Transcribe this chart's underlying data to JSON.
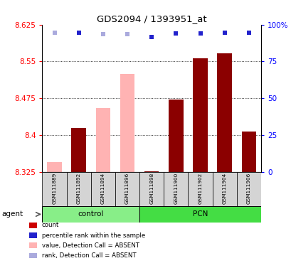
{
  "title": "GDS2094 / 1393951_at",
  "samples": [
    "GSM111889",
    "GSM111892",
    "GSM111894",
    "GSM111896",
    "GSM111898",
    "GSM111900",
    "GSM111902",
    "GSM111904",
    "GSM111906"
  ],
  "groups": [
    "control",
    "control",
    "control",
    "control",
    "PCN",
    "PCN",
    "PCN",
    "PCN",
    "PCN"
  ],
  "bar_values": [
    8.345,
    8.415,
    8.455,
    8.525,
    8.327,
    8.472,
    8.557,
    8.567,
    8.408
  ],
  "bar_colors": [
    "#ffb3b3",
    "#8b0000",
    "#ffb3b3",
    "#ffb3b3",
    "#8b0000",
    "#8b0000",
    "#8b0000",
    "#8b0000",
    "#8b0000"
  ],
  "dot_y": [
    8.608,
    8.608,
    8.605,
    8.605,
    8.6,
    8.607,
    8.607,
    8.608,
    8.608
  ],
  "dot_colors": [
    "#aaaadd",
    "#2222cc",
    "#aaaadd",
    "#aaaadd",
    "#2222cc",
    "#2222cc",
    "#2222cc",
    "#2222cc",
    "#2222cc"
  ],
  "ymin": 8.325,
  "ymax": 8.625,
  "yticks": [
    8.325,
    8.4,
    8.475,
    8.55,
    8.625
  ],
  "ytick_labels": [
    "8.325",
    "8.4",
    "8.475",
    "8.55",
    "8.625"
  ],
  "y2ticks": [
    0,
    25,
    50,
    75,
    100
  ],
  "y2tick_labels": [
    "0",
    "25",
    "50",
    "75",
    "100%"
  ],
  "grid_lines": [
    8.4,
    8.475,
    8.55
  ],
  "control_label": "control",
  "pcn_label": "PCN",
  "agent_label": "agent",
  "n_control": 4,
  "n_pcn": 5,
  "legend_items": [
    {
      "color": "#cc0000",
      "label": "count"
    },
    {
      "color": "#2222cc",
      "label": "percentile rank within the sample"
    },
    {
      "color": "#ffb3b3",
      "label": "value, Detection Call = ABSENT"
    },
    {
      "color": "#aaaadd",
      "label": "rank, Detection Call = ABSENT"
    }
  ]
}
